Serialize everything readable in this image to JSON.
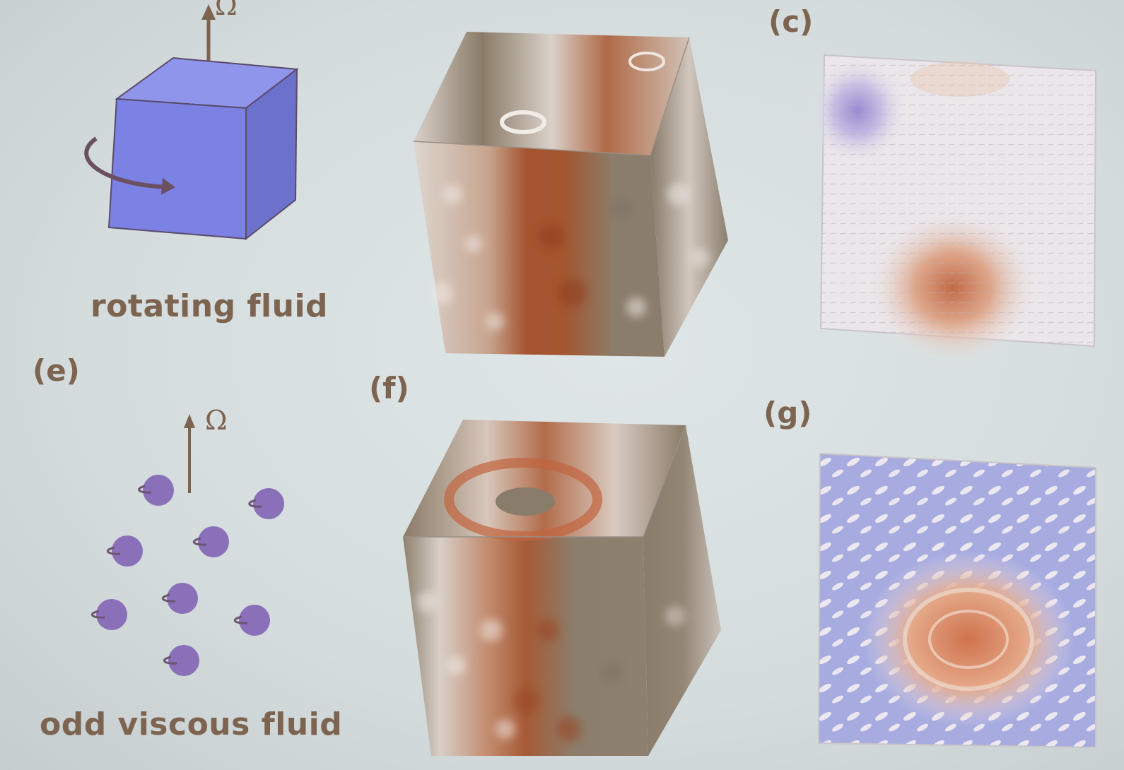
{
  "panels": {
    "top": {
      "left_caption": "rotating fluid",
      "omega_symbol": "Ω",
      "c_label": "(c)"
    },
    "bottom": {
      "e_label": "(e)",
      "f_label": "(f)",
      "g_label": "(g)",
      "omega_symbol": "Ω",
      "left_caption": "odd viscous fluid"
    }
  },
  "colors": {
    "cube_blue": "#7d84e6",
    "particle_purple": "#8a70b8",
    "field_brown": "#a3522f",
    "field_grey": "#8a7a66",
    "field_blue": "#8f96d8"
  }
}
